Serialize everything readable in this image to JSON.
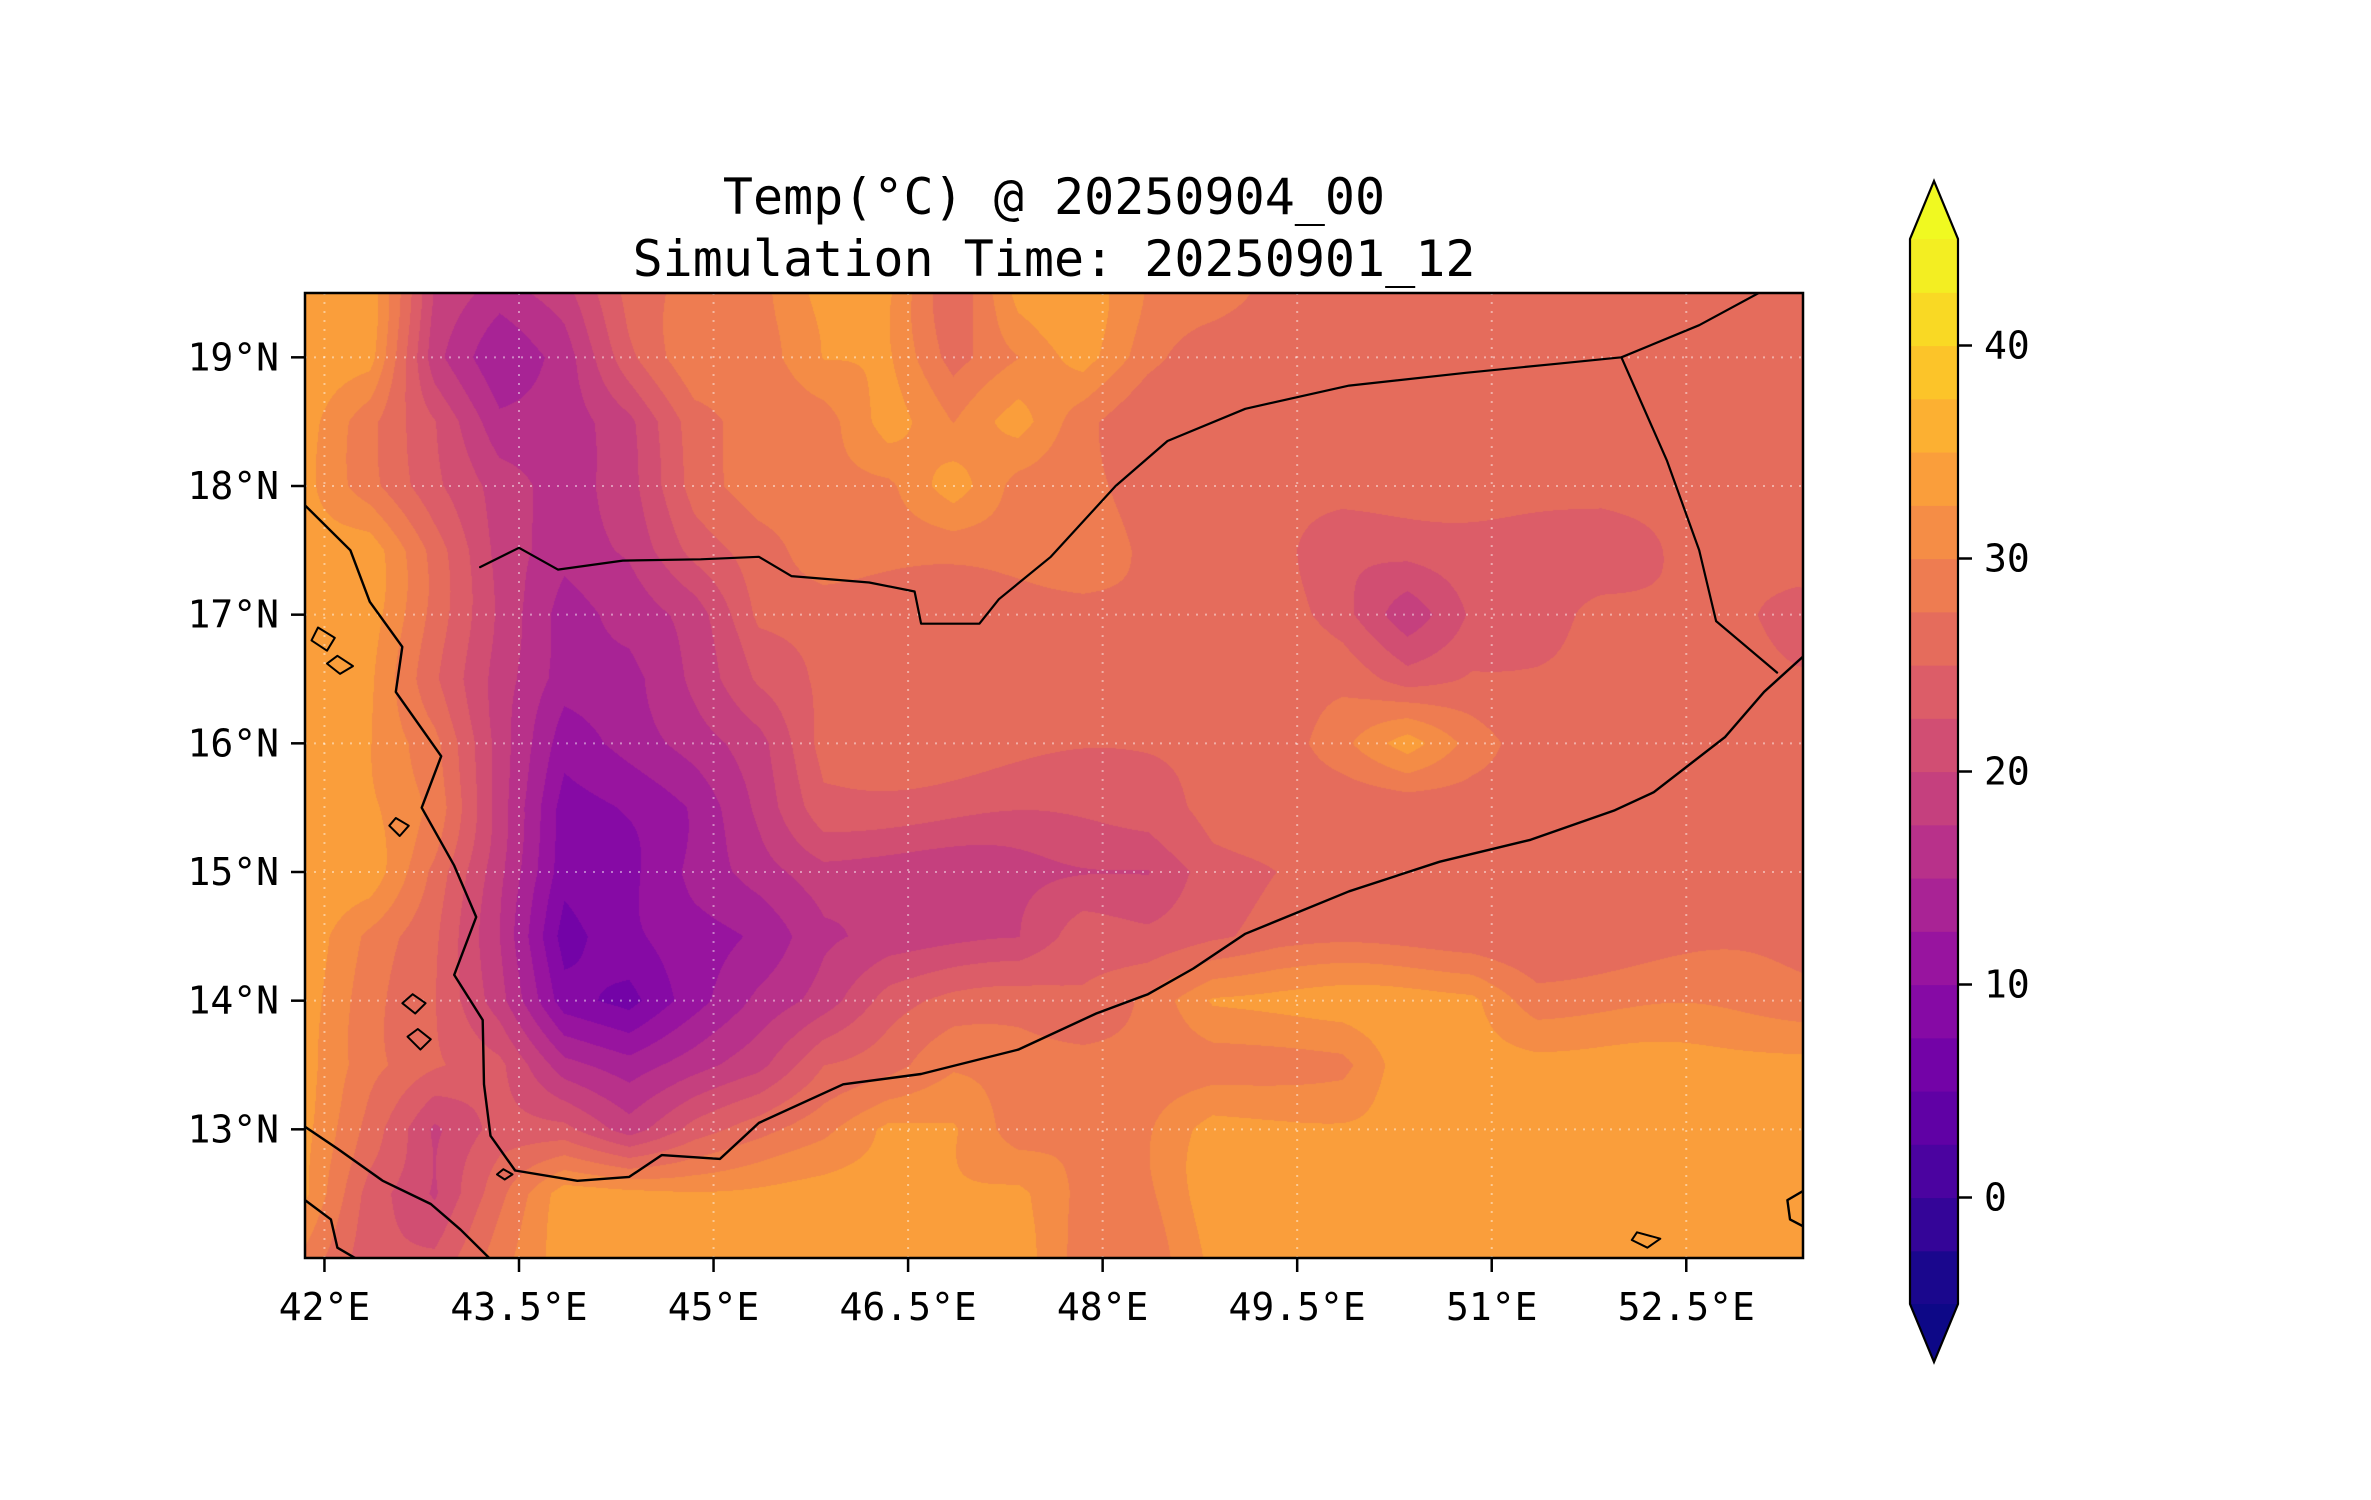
{
  "chart_data": {
    "type": "heatmap",
    "title": "Temp(°C) @ 20250904_00",
    "subtitle": "Simulation Time: 20250901_12",
    "valid_time": "20250904_00",
    "simulation_time": "20250901_12",
    "extent": {
      "lon_min": 41.85,
      "lon_max": 53.4,
      "lat_min": 12.0,
      "lat_max": 19.5
    },
    "gridlines": {
      "visible": true,
      "style": "dotted"
    },
    "x_ticks": [
      {
        "value": 42.0,
        "label": "42°E"
      },
      {
        "value": 43.5,
        "label": "43.5°E"
      },
      {
        "value": 45.0,
        "label": "45°E"
      },
      {
        "value": 46.5,
        "label": "46.5°E"
      },
      {
        "value": 48.0,
        "label": "48°E"
      },
      {
        "value": 49.5,
        "label": "49.5°E"
      },
      {
        "value": 51.0,
        "label": "51°E"
      },
      {
        "value": 52.5,
        "label": "52.5°E"
      }
    ],
    "y_ticks": [
      {
        "value": 19,
        "label": "19°N"
      },
      {
        "value": 18,
        "label": "18°N"
      },
      {
        "value": 17,
        "label": "17°N"
      },
      {
        "value": 16,
        "label": "16°N"
      },
      {
        "value": 15,
        "label": "15°N"
      },
      {
        "value": 14,
        "label": "14°N"
      },
      {
        "value": 13,
        "label": "13°N"
      }
    ],
    "colorbar": {
      "vmin": -5,
      "vmax": 45,
      "level_step": 2.5,
      "extend": "both",
      "colormap": "plasma",
      "ticks": [
        {
          "value": 0,
          "label": "0"
        },
        {
          "value": 10,
          "label": "10"
        },
        {
          "value": 20,
          "label": "20"
        },
        {
          "value": 30,
          "label": "30"
        },
        {
          "value": 40,
          "label": "40"
        }
      ],
      "plasma_anchors": [
        [
          0.0,
          "#0d0887"
        ],
        [
          0.1,
          "#41049d"
        ],
        [
          0.2,
          "#6a00a8"
        ],
        [
          0.3,
          "#8f0da4"
        ],
        [
          0.4,
          "#b12a90"
        ],
        [
          0.5,
          "#cc4778"
        ],
        [
          0.6,
          "#e16462"
        ],
        [
          0.7,
          "#f2844b"
        ],
        [
          0.8,
          "#fca636"
        ],
        [
          0.9,
          "#fcce25"
        ],
        [
          1.0,
          "#f0f921"
        ]
      ]
    },
    "grid": {
      "lon0": 41.85,
      "lon_step": 0.5,
      "lat0": 19.5,
      "lat_step": 0.5,
      "temps": [
        [
          33.5,
          33.5,
          19,
          16,
          19,
          26,
          29,
          29,
          33.5,
          33.5,
          26,
          33.5,
          33.5,
          29,
          29,
          26,
          26,
          26,
          26,
          26,
          26,
          26,
          26,
          26
        ],
        [
          33.5,
          33.5,
          19,
          13.5,
          16,
          23.5,
          29,
          29,
          33.5,
          33.5,
          26,
          29,
          33.5,
          29,
          26,
          26,
          26,
          26,
          26,
          26,
          26,
          26,
          26,
          26
        ],
        [
          33.5,
          29,
          23.5,
          16,
          16,
          19,
          26,
          29,
          29,
          33.5,
          29,
          33.5,
          29,
          26,
          26,
          26,
          26,
          26,
          26,
          26,
          26,
          26,
          26,
          26
        ],
        [
          33.5,
          29,
          23.5,
          19,
          16,
          19,
          26,
          29,
          29,
          29,
          33.5,
          29,
          29,
          26,
          26,
          26,
          26,
          26,
          26,
          26,
          26,
          26,
          26,
          26
        ],
        [
          33.5,
          33.5,
          26,
          19,
          16,
          18,
          23.5,
          26,
          29,
          29,
          29,
          29,
          29,
          26,
          26,
          26,
          23.5,
          23.5,
          23.5,
          23.5,
          23.5,
          26,
          26,
          26
        ],
        [
          33.5,
          33.5,
          26,
          19,
          13.5,
          16,
          19,
          26,
          26,
          26,
          26,
          26,
          26,
          26,
          26,
          26,
          23.5,
          19,
          23.5,
          23.5,
          26,
          26,
          26,
          23.5
        ],
        [
          33.5,
          33.5,
          26,
          19,
          13.5,
          13.5,
          18,
          23.5,
          26,
          26,
          26,
          26,
          26,
          26,
          26,
          26,
          26,
          23.5,
          26,
          26,
          26,
          26,
          26,
          26
        ],
        [
          33.5,
          33.5,
          29,
          19,
          11,
          13.5,
          16,
          19,
          26,
          26,
          26,
          26,
          26,
          26,
          26,
          26,
          29,
          33.5,
          29,
          26,
          26,
          26,
          26,
          26
        ],
        [
          33.5,
          33.5,
          29,
          18,
          8.5,
          11,
          13.5,
          18,
          23.5,
          23.5,
          23.5,
          23.5,
          23.5,
          23.5,
          25,
          26,
          26,
          26,
          26,
          26,
          26,
          26,
          26,
          26
        ],
        [
          33.5,
          33.5,
          26,
          18,
          8.5,
          9.5,
          13.5,
          16,
          19,
          19,
          19,
          19,
          19,
          19,
          23.5,
          25,
          26,
          26,
          26,
          26,
          26,
          26,
          26,
          26
        ],
        [
          33.5,
          29,
          26,
          18,
          6,
          8.5,
          11,
          13.5,
          18,
          19,
          19,
          19,
          23.5,
          23.5,
          25,
          26,
          26,
          26,
          26,
          26,
          26,
          26,
          26,
          26
        ],
        [
          33.5,
          29,
          26,
          19,
          8.5,
          6,
          11,
          16,
          19,
          23.5,
          25,
          26,
          26,
          29,
          33.5,
          33.5,
          33.5,
          33.5,
          33.5,
          29,
          29,
          29,
          29,
          29
        ],
        [
          33.5,
          29,
          26,
          23.5,
          16,
          13.5,
          16,
          19,
          25,
          26,
          29,
          29,
          29,
          29,
          29,
          29,
          29,
          33.5,
          33.5,
          33.5,
          33.5,
          33.5,
          33.5,
          33.5
        ],
        [
          33.5,
          26,
          19,
          23.5,
          23.5,
          19,
          23.5,
          26,
          29,
          33.5,
          33.5,
          29,
          29,
          29,
          33.5,
          33.5,
          33.5,
          33.5,
          33.5,
          33.5,
          33.5,
          33.5,
          33.5,
          33.5
        ],
        [
          33.5,
          23.5,
          19,
          26,
          33.5,
          33.5,
          33.5,
          33.5,
          33.5,
          33.5,
          33.5,
          33.5,
          29,
          29,
          33.5,
          33.5,
          33.5,
          33.5,
          33.5,
          33.5,
          33.5,
          33.5,
          33.5,
          33.5
        ],
        [
          29,
          23.5,
          23.5,
          29,
          33.5,
          33.5,
          33.5,
          33.5,
          33.5,
          33.5,
          33.5,
          33.5,
          29,
          29,
          33.5,
          33.5,
          33.5,
          33.5,
          33.5,
          33.5,
          33.5,
          33.5,
          33.5,
          33.5
        ]
      ]
    },
    "overlays": {
      "coastlines": [
        {
          "name": "arabia-coastline",
          "points": [
            [
              41.85,
              17.85
            ],
            [
              42.2,
              17.5
            ],
            [
              42.35,
              17.1
            ],
            [
              42.6,
              16.75
            ],
            [
              42.55,
              16.4
            ],
            [
              42.9,
              15.9
            ],
            [
              42.75,
              15.5
            ],
            [
              43.0,
              15.05
            ],
            [
              43.17,
              14.65
            ],
            [
              43.0,
              14.2
            ],
            [
              43.22,
              13.85
            ],
            [
              43.23,
              13.35
            ],
            [
              43.28,
              12.95
            ],
            [
              43.47,
              12.68
            ],
            [
              43.95,
              12.6
            ],
            [
              44.35,
              12.63
            ],
            [
              44.6,
              12.8
            ],
            [
              45.05,
              12.77
            ],
            [
              45.35,
              13.05
            ],
            [
              46.0,
              13.35
            ],
            [
              46.6,
              13.43
            ],
            [
              47.35,
              13.62
            ],
            [
              47.95,
              13.9
            ],
            [
              48.35,
              14.05
            ],
            [
              48.7,
              14.25
            ],
            [
              49.1,
              14.52
            ],
            [
              49.9,
              14.85
            ],
            [
              50.6,
              15.08
            ],
            [
              51.3,
              15.25
            ],
            [
              51.95,
              15.48
            ],
            [
              52.25,
              15.62
            ],
            [
              52.8,
              16.05
            ],
            [
              53.1,
              16.4
            ],
            [
              53.45,
              16.72
            ]
          ]
        },
        {
          "name": "africa-coastline",
          "points": [
            [
              41.85,
              13.02
            ],
            [
              42.1,
              12.85
            ],
            [
              42.45,
              12.6
            ],
            [
              42.82,
              12.42
            ],
            [
              43.05,
              12.22
            ],
            [
              43.32,
              11.95
            ]
          ]
        },
        {
          "name": "djibouti-coastline",
          "points": [
            [
              41.85,
              12.45
            ],
            [
              42.05,
              12.3
            ],
            [
              42.1,
              12.08
            ],
            [
              42.32,
              11.95
            ]
          ]
        },
        {
          "name": "socotra-west-tip",
          "points": [
            [
              53.45,
              12.55
            ],
            [
              53.28,
              12.45
            ],
            [
              53.3,
              12.3
            ],
            [
              53.45,
              12.22
            ]
          ]
        }
      ],
      "borders": [
        {
          "name": "saudi-yemen-border",
          "points": [
            [
              43.2,
              17.37
            ],
            [
              43.5,
              17.52
            ],
            [
              43.8,
              17.35
            ],
            [
              44.3,
              17.42
            ],
            [
              44.9,
              17.43
            ],
            [
              45.35,
              17.45
            ],
            [
              45.6,
              17.3
            ],
            [
              46.2,
              17.25
            ],
            [
              46.55,
              17.18
            ],
            [
              46.6,
              16.93
            ],
            [
              47.05,
              16.93
            ],
            [
              47.2,
              17.12
            ],
            [
              47.6,
              17.45
            ],
            [
              48.1,
              18.0
            ],
            [
              48.5,
              18.35
            ],
            [
              49.1,
              18.6
            ],
            [
              49.9,
              18.78
            ],
            [
              50.8,
              18.88
            ],
            [
              51.5,
              18.95
            ],
            [
              52.0,
              19.0
            ],
            [
              52.6,
              19.25
            ],
            [
              53.15,
              19.55
            ]
          ]
        },
        {
          "name": "oman-yemen-border",
          "points": [
            [
              52.0,
              19.0
            ],
            [
              52.35,
              18.2
            ],
            [
              52.6,
              17.5
            ],
            [
              52.73,
              16.95
            ],
            [
              53.2,
              16.55
            ]
          ]
        }
      ],
      "islands": [
        {
          "name": "island-farasan-north",
          "points": [
            [
              41.95,
              16.9
            ],
            [
              42.08,
              16.82
            ],
            [
              42.02,
              16.72
            ],
            [
              41.9,
              16.8
            ]
          ]
        },
        {
          "name": "island-farasan-south",
          "points": [
            [
              42.1,
              16.68
            ],
            [
              42.22,
              16.6
            ],
            [
              42.12,
              16.54
            ],
            [
              42.02,
              16.62
            ]
          ]
        },
        {
          "name": "island-kamaran",
          "points": [
            [
              42.55,
              15.42
            ],
            [
              42.65,
              15.36
            ],
            [
              42.58,
              15.28
            ],
            [
              42.5,
              15.36
            ]
          ]
        },
        {
          "name": "island-zuqar",
          "points": [
            [
              42.68,
              14.05
            ],
            [
              42.78,
              13.98
            ],
            [
              42.7,
              13.9
            ],
            [
              42.6,
              13.98
            ]
          ]
        },
        {
          "name": "island-hanish",
          "points": [
            [
              42.72,
              13.78
            ],
            [
              42.82,
              13.7
            ],
            [
              42.74,
              13.62
            ],
            [
              42.64,
              13.72
            ]
          ]
        },
        {
          "name": "island-perim",
          "points": [
            [
              43.38,
              12.69
            ],
            [
              43.45,
              12.65
            ],
            [
              43.39,
              12.61
            ],
            [
              43.33,
              12.65
            ]
          ]
        },
        {
          "name": "island-abd-al-kuri",
          "points": [
            [
              52.12,
              12.2
            ],
            [
              52.3,
              12.15
            ],
            [
              52.2,
              12.08
            ],
            [
              52.08,
              12.14
            ]
          ]
        }
      ]
    }
  }
}
